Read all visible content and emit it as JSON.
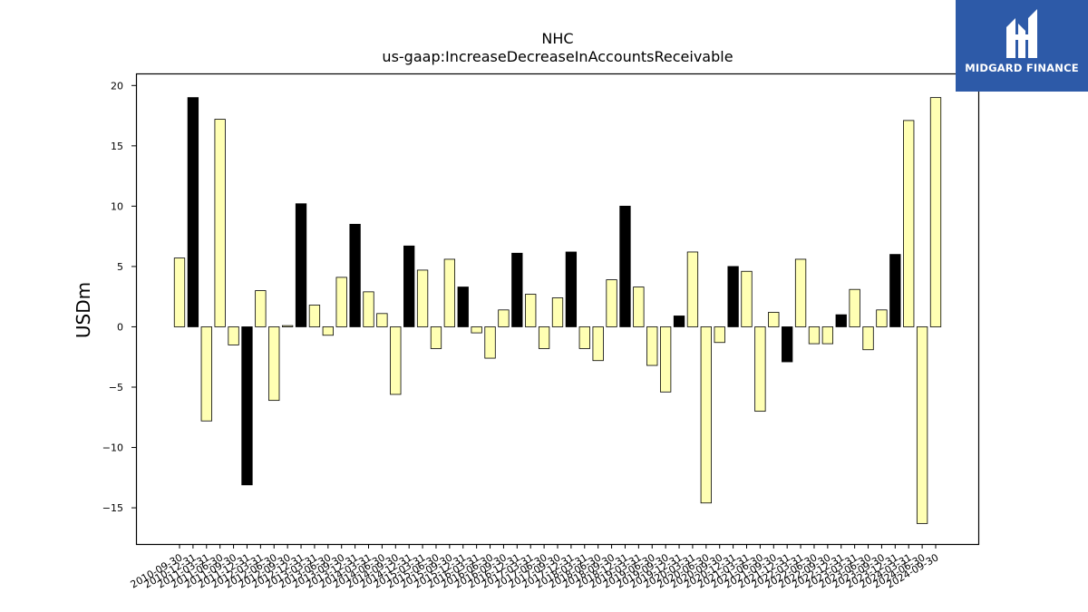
{
  "brand": {
    "name": "MIDGARD FINANCE",
    "logo_icon": "midgard-m-logo-icon",
    "color": "#2d5aa8"
  },
  "chart_data": {
    "type": "bar",
    "title": "NHC",
    "subtitle": "us-gaap:IncreaseDecreaseInAccountsReceivable",
    "xlabel": "",
    "ylabel": "USDm",
    "ylim": [
      -18,
      21
    ],
    "yticks": [
      -15,
      -10,
      -5,
      0,
      5,
      10,
      15,
      20
    ],
    "ytick_labels": [
      "−15",
      "−10",
      "−5",
      "0",
      "5",
      "10",
      "15",
      "20"
    ],
    "grid": false,
    "colors": {
      "quarter": "#ffffb3",
      "annual": "#000000",
      "edge": "#000000"
    },
    "categories": [
      "2010-09-30",
      "2010-12-31",
      "2011-03-31",
      "2011-06-30",
      "2011-09-30",
      "2011-12-31",
      "2012-03-31",
      "2012-06-30",
      "2012-09-30",
      "2012-12-31",
      "2013-03-31",
      "2013-06-30",
      "2013-09-30",
      "2013-12-31",
      "2014-03-31",
      "2014-06-30",
      "2014-09-30",
      "2014-12-31",
      "2015-03-31",
      "2015-06-30",
      "2015-09-30",
      "2015-12-31",
      "2016-03-31",
      "2016-06-30",
      "2016-09-30",
      "2016-12-31",
      "2017-03-31",
      "2017-06-30",
      "2017-09-30",
      "2017-12-31",
      "2018-03-31",
      "2018-06-30",
      "2018-09-30",
      "2018-12-31",
      "2019-03-31",
      "2019-06-30",
      "2019-09-30",
      "2019-12-31",
      "2020-03-31",
      "2020-06-30",
      "2020-09-30",
      "2020-12-31",
      "2021-03-31",
      "2021-06-30",
      "2021-09-30",
      "2021-12-31",
      "2022-03-31",
      "2022-06-30",
      "2022-09-30",
      "2022-12-31",
      "2023-03-31",
      "2023-06-30",
      "2023-09-30",
      "2023-12-31",
      "2024-03-31",
      "2024-06-30",
      "2024-09-30"
    ],
    "values": [
      5.7,
      19.0,
      -7.8,
      17.2,
      -1.5,
      -13.1,
      3.0,
      -6.1,
      0.1,
      10.2,
      1.8,
      -0.7,
      4.1,
      8.5,
      2.9,
      1.1,
      -5.6,
      6.7,
      4.7,
      -1.8,
      5.6,
      3.3,
      -0.5,
      -2.6,
      1.4,
      6.1,
      2.7,
      -1.8,
      2.4,
      6.2,
      -1.8,
      -2.8,
      3.9,
      10.0,
      3.3,
      -3.2,
      -5.4,
      0.9,
      6.2,
      -14.6,
      -1.3,
      5.0,
      4.6,
      -7.0,
      1.2,
      -2.9,
      5.6,
      -1.4,
      -1.4,
      1.0,
      3.1,
      -1.9,
      1.4,
      6.0,
      17.1,
      -16.3,
      19.0
    ],
    "annual": [
      false,
      true,
      false,
      false,
      false,
      true,
      false,
      false,
      false,
      true,
      false,
      false,
      false,
      true,
      false,
      false,
      false,
      true,
      false,
      false,
      false,
      true,
      false,
      false,
      false,
      true,
      false,
      false,
      false,
      true,
      false,
      false,
      false,
      true,
      false,
      false,
      false,
      true,
      false,
      false,
      false,
      true,
      false,
      false,
      false,
      true,
      false,
      false,
      false,
      true,
      false,
      false,
      false,
      true,
      false,
      false,
      false
    ]
  }
}
